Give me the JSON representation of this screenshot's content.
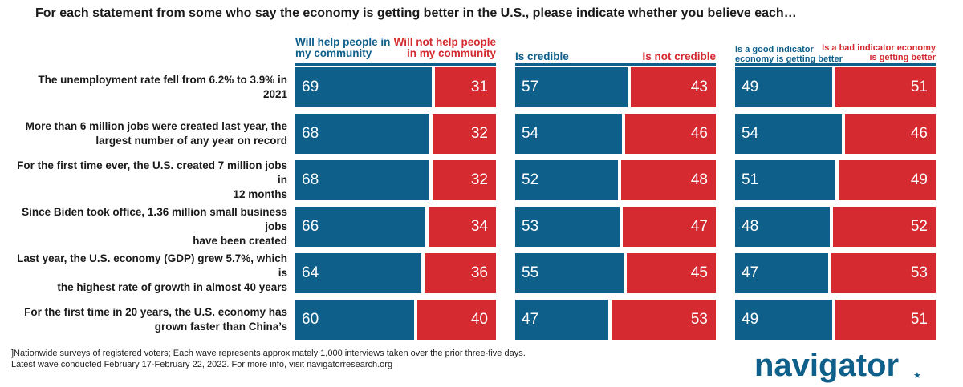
{
  "headline": "For each statement from some who say the economy is getting better in the U.S., please indicate whether you believe each…",
  "footnote": {
    "line1": "]Nationwide surveys of registered voters; Each wave represents approximately 1,000 interviews taken over the prior three-five days.",
    "line2": "Latest wave conducted February 17-February 22, 2022. For more info, visit navigatorresearch.org"
  },
  "logo": {
    "text": "navigator",
    "star": "★"
  },
  "colors": {
    "positive": "#0e5f8a",
    "negative": "#d42a30"
  },
  "chart_data": {
    "type": "bar",
    "categories": [
      [
        "The unemployment rate fell from 6.2% to 3.9% in 2021"
      ],
      [
        "More than 6 million jobs were created last year, the",
        "largest number of any year on record"
      ],
      [
        "For the first time ever, the U.S. created 7 million jobs in",
        "12 months"
      ],
      [
        "Since Biden took office, 1.36 million small business jobs",
        "have been created"
      ],
      [
        "Last year, the U.S. economy (GDP) grew 5.7%, which is",
        "the highest rate of growth in almost 40 years"
      ],
      [
        "For the first time in 20 years, the U.S. economy has",
        "grown faster than China’s"
      ]
    ],
    "panels": [
      {
        "positive_label": [
          "Will help people in",
          "my community"
        ],
        "negative_label": [
          "Will not help people",
          "in my community"
        ],
        "positive": [
          69,
          68,
          68,
          66,
          64,
          60
        ],
        "negative": [
          31,
          32,
          32,
          34,
          36,
          40
        ]
      },
      {
        "positive_label": [
          "Is credible"
        ],
        "negative_label": [
          "Is not credible"
        ],
        "positive": [
          57,
          54,
          52,
          53,
          55,
          47
        ],
        "negative": [
          43,
          46,
          48,
          47,
          45,
          53
        ]
      },
      {
        "positive_label": [
          "Is a good indicator",
          "economy is getting better"
        ],
        "negative_label": [
          "Is a bad indicator economy",
          "is getting better"
        ],
        "positive": [
          49,
          54,
          51,
          48,
          47,
          49
        ],
        "negative": [
          51,
          46,
          49,
          52,
          53,
          51
        ]
      }
    ]
  }
}
